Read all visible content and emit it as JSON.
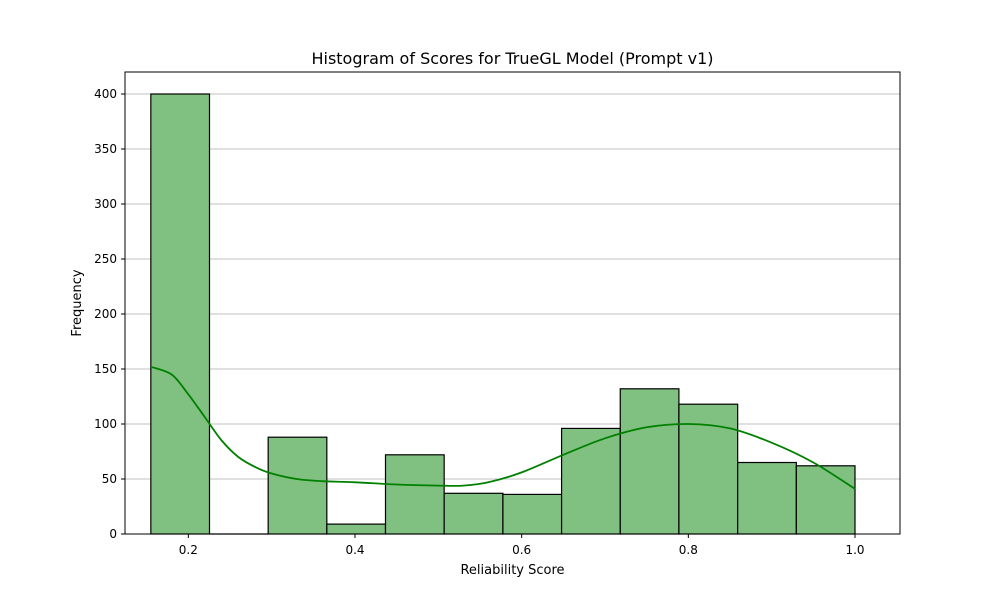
{
  "chart_data": {
    "type": "bar",
    "title": "Histogram of Scores for TrueGL Model (Prompt v1)",
    "xlabel": "Reliability Score",
    "ylabel": "Frequency",
    "xlim": [
      0.124,
      1.054
    ],
    "ylim": [
      0,
      420
    ],
    "xticks": [
      0.2,
      0.4,
      0.6,
      0.8,
      1.0
    ],
    "xtick_labels": [
      "0.2",
      "0.4",
      "0.6",
      "0.8",
      "1.0"
    ],
    "yticks": [
      0,
      50,
      100,
      150,
      200,
      250,
      300,
      350,
      400
    ],
    "ytick_labels": [
      "0",
      "50",
      "100",
      "150",
      "200",
      "250",
      "300",
      "350",
      "400"
    ],
    "grid": "y-axis",
    "bins": [
      {
        "x0": 0.155,
        "x1": 0.2254,
        "count": 400
      },
      {
        "x0": 0.2254,
        "x1": 0.2958,
        "count": 0
      },
      {
        "x0": 0.2958,
        "x1": 0.3662,
        "count": 88
      },
      {
        "x0": 0.3662,
        "x1": 0.4366,
        "count": 9
      },
      {
        "x0": 0.4366,
        "x1": 0.507,
        "count": 72
      },
      {
        "x0": 0.507,
        "x1": 0.5775,
        "count": 37
      },
      {
        "x0": 0.5775,
        "x1": 0.6479,
        "count": 36
      },
      {
        "x0": 0.6479,
        "x1": 0.7183,
        "count": 96
      },
      {
        "x0": 0.7183,
        "x1": 0.7887,
        "count": 132
      },
      {
        "x0": 0.7887,
        "x1": 0.8592,
        "count": 118
      },
      {
        "x0": 0.8592,
        "x1": 0.9296,
        "count": 65
      },
      {
        "x0": 0.9296,
        "x1": 1.0,
        "count": 62
      }
    ],
    "kde": {
      "x": [
        0.155,
        0.18,
        0.2,
        0.22,
        0.24,
        0.26,
        0.28,
        0.3,
        0.33,
        0.36,
        0.4,
        0.45,
        0.5,
        0.53,
        0.56,
        0.6,
        0.65,
        0.7,
        0.75,
        0.8,
        0.85,
        0.9,
        0.95,
        1.0
      ],
      "y": [
        152,
        145,
        127,
        106,
        85,
        70,
        61,
        55,
        50,
        48,
        47,
        45,
        44,
        44,
        47,
        56,
        72,
        87,
        97,
        100,
        96,
        83,
        65,
        41
      ]
    },
    "colors": {
      "bar_fill": "#80c080",
      "bar_edge": "#000000",
      "kde_line": "#008000",
      "grid": "#c0c0c0"
    }
  }
}
